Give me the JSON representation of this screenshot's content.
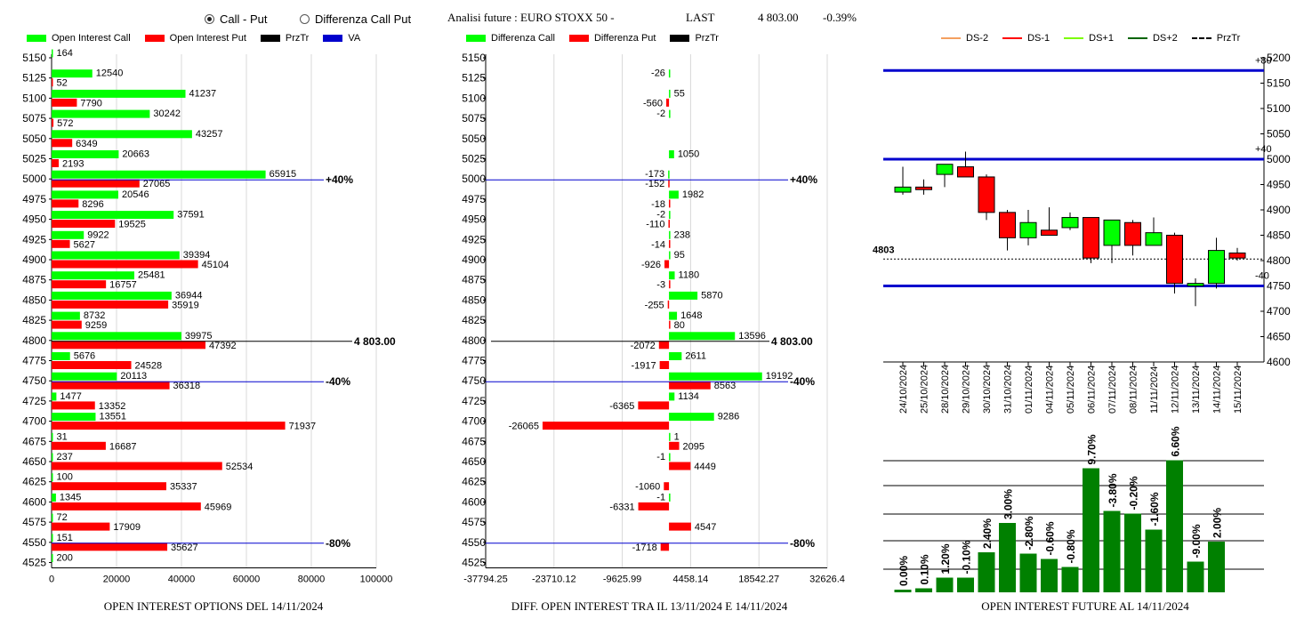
{
  "header": {
    "radio_call_put": "Call - Put",
    "radio_diff": "Differenza Call Put",
    "title": "Analisi future : EURO STOXX 50 -",
    "last_label": "LAST",
    "last_value": "4 803.00",
    "last_change": "-0.39%"
  },
  "left_legend": {
    "call": "Open Interest Call",
    "put": "Open Interest Put",
    "prztr": "PrzTr",
    "va": "VA"
  },
  "mid_legend": {
    "call": "Differenza Call",
    "put": "Differenza Put",
    "prztr": "PrzTr"
  },
  "right_legend": {
    "ds_minus2": "DS-2",
    "ds_minus1": "DS-1",
    "ds_plus1": "DS+1",
    "ds_plus2": "DS+2",
    "prztr": "PrzTr"
  },
  "footers": {
    "left": "OPEN INTEREST OPTIONS DEL 14/11/2024",
    "mid": "DIFF. OPEN INTEREST TRA IL 13/11/2024 E 14/11/2024",
    "right": "OPEN INTEREST FUTURE AL 14/11/2024"
  },
  "colors": {
    "call": "#00ff00",
    "put": "#ff0000",
    "va": "#0000cd",
    "future_bar": "#008000",
    "candle_up": "#00ff00",
    "candle_down": "#ff0000"
  },
  "chart_data": [
    {
      "type": "bar",
      "orientation": "horizontal",
      "categories": [
        5150,
        5125,
        5100,
        5075,
        5050,
        5025,
        5000,
        4975,
        4950,
        4925,
        4900,
        4875,
        4850,
        4825,
        4800,
        4775,
        4750,
        4725,
        4700,
        4675,
        4650,
        4625,
        4600,
        4575,
        4550,
        4525
      ],
      "series": [
        {
          "name": "Open Interest Call",
          "values": [
            164,
            12540,
            41237,
            30242,
            43257,
            20663,
            65915,
            20546,
            37591,
            9922,
            39394,
            25481,
            36944,
            8732,
            39975,
            5676,
            20113,
            1477,
            13551,
            31,
            237,
            100,
            1345,
            72,
            151,
            200
          ]
        },
        {
          "name": "Open Interest Put",
          "values": [
            null,
            52,
            7790,
            572,
            6349,
            2193,
            27065,
            8296,
            19525,
            5627,
            45104,
            16757,
            35919,
            9259,
            47392,
            24528,
            36318,
            13352,
            71937,
            16687,
            52534,
            35337,
            45969,
            17909,
            35627,
            null
          ]
        }
      ],
      "xlim": [
        0,
        100000
      ],
      "x_ticks": [
        "0",
        "20000",
        "40000",
        "60000",
        "80000",
        "100000"
      ],
      "reference_lines": [
        {
          "label": "+40%",
          "at": 5000
        },
        {
          "label": "4 803.00",
          "at": 4800
        },
        {
          "label": "-40%",
          "at": 4750
        },
        {
          "label": "-80%",
          "at": 4550
        }
      ]
    },
    {
      "type": "bar",
      "orientation": "horizontal",
      "categories": [
        5150,
        5125,
        5100,
        5075,
        5050,
        5025,
        5000,
        4975,
        4950,
        4925,
        4900,
        4875,
        4850,
        4825,
        4800,
        4775,
        4750,
        4725,
        4700,
        4675,
        4650,
        4625,
        4600,
        4575,
        4550,
        4525
      ],
      "series": [
        {
          "name": "Differenza Call",
          "values": [
            null,
            -26,
            55,
            -2,
            null,
            1050,
            -173,
            1982,
            -2,
            238,
            95,
            1180,
            5870,
            1648,
            13596,
            2611,
            19192,
            1134,
            9286,
            1,
            -1,
            null,
            -1,
            null,
            null,
            null
          ]
        },
        {
          "name": "Differenza Put",
          "values": [
            null,
            null,
            -560,
            null,
            null,
            null,
            -152,
            -18,
            -110,
            -14,
            -926,
            -3,
            -255,
            80,
            -2072,
            -1917,
            8563,
            -6365,
            -26065,
            2095,
            4449,
            -1060,
            -6331,
            4547,
            -1718,
            null
          ]
        }
      ],
      "xlim": [
        -37794.25,
        32626.4
      ],
      "x_ticks": [
        "-37794.25",
        "-23710.12",
        "-9625.99",
        "4458.14",
        "18542.27",
        "32626.4"
      ],
      "reference_lines": [
        {
          "label": "+40%",
          "at": 5000
        },
        {
          "label": "4 803.00",
          "at": 4800
        },
        {
          "label": "-40%",
          "at": 4750
        },
        {
          "label": "-80%",
          "at": 4550
        }
      ]
    },
    {
      "type": "candlestick",
      "x": [
        "24/10/2024",
        "25/10/2024",
        "28/10/2024",
        "29/10/2024",
        "30/10/2024",
        "31/10/2024",
        "01/11/2024",
        "04/11/2024",
        "05/11/2024",
        "06/11/2024",
        "07/11/2024",
        "08/11/2024",
        "11/11/2024",
        "12/11/2024",
        "13/11/2024",
        "14/11/2024",
        "15/11/2024"
      ],
      "ohlc": [
        [
          4935,
          4985,
          4930,
          4945
        ],
        [
          4945,
          4960,
          4930,
          4940
        ],
        [
          4970,
          4990,
          4945,
          4990
        ],
        [
          4985,
          5015,
          4965,
          4965
        ],
        [
          4965,
          4970,
          4880,
          4895
        ],
        [
          4895,
          4900,
          4820,
          4845
        ],
        [
          4845,
          4900,
          4830,
          4875
        ],
        [
          4860,
          4905,
          4850,
          4850
        ],
        [
          4865,
          4895,
          4860,
          4885
        ],
        [
          4885,
          4885,
          4795,
          4805
        ],
        [
          4830,
          4880,
          4795,
          4880
        ],
        [
          4875,
          4880,
          4810,
          4830
        ],
        [
          4830,
          4885,
          4830,
          4855
        ],
        [
          4850,
          4855,
          4735,
          4755
        ],
        [
          4750,
          4765,
          4710,
          4755
        ],
        [
          4755,
          4845,
          4745,
          4820
        ],
        [
          4815,
          4825,
          4800,
          4805
        ]
      ],
      "ylim": [
        4600,
        5200
      ],
      "y_ticks": [
        "5200",
        "5150",
        "5100",
        "5050",
        "5000",
        "4950",
        "4900",
        "4850",
        "4800",
        "4750",
        "4700",
        "4650",
        "4600"
      ],
      "levels": [
        {
          "label": "+80",
          "value": 5175
        },
        {
          "label": "+40",
          "value": 5000
        },
        {
          "label": "-40",
          "value": 4750
        }
      ],
      "przTr": {
        "label": "4803",
        "value": 4803
      }
    },
    {
      "type": "bar",
      "x": [
        "24/10/2024",
        "25/10/2024",
        "28/10/2024",
        "29/10/2024",
        "30/10/2024",
        "31/10/2024",
        "01/11/2024",
        "04/11/2024",
        "05/11/2024",
        "06/11/2024",
        "07/11/2024",
        "08/11/2024",
        "11/11/2024",
        "12/11/2024",
        "13/11/2024",
        "14/11/2024"
      ],
      "pct_labels": [
        "0.00%",
        "0.10%",
        "1.20%",
        "-0.10%",
        "2.40%",
        "3.00%",
        "-2.80%",
        "-0.60%",
        "-0.80%",
        "9.70%",
        "-3.80%",
        "-0.20%",
        "-1.60%",
        "6.60%",
        "-9.00%",
        "2.00%"
      ],
      "relative_heights": [
        0.02,
        0.03,
        0.11,
        0.11,
        0.3,
        0.52,
        0.29,
        0.25,
        0.19,
        0.93,
        0.61,
        0.59,
        0.47,
        0.99,
        0.23,
        0.38
      ]
    }
  ]
}
